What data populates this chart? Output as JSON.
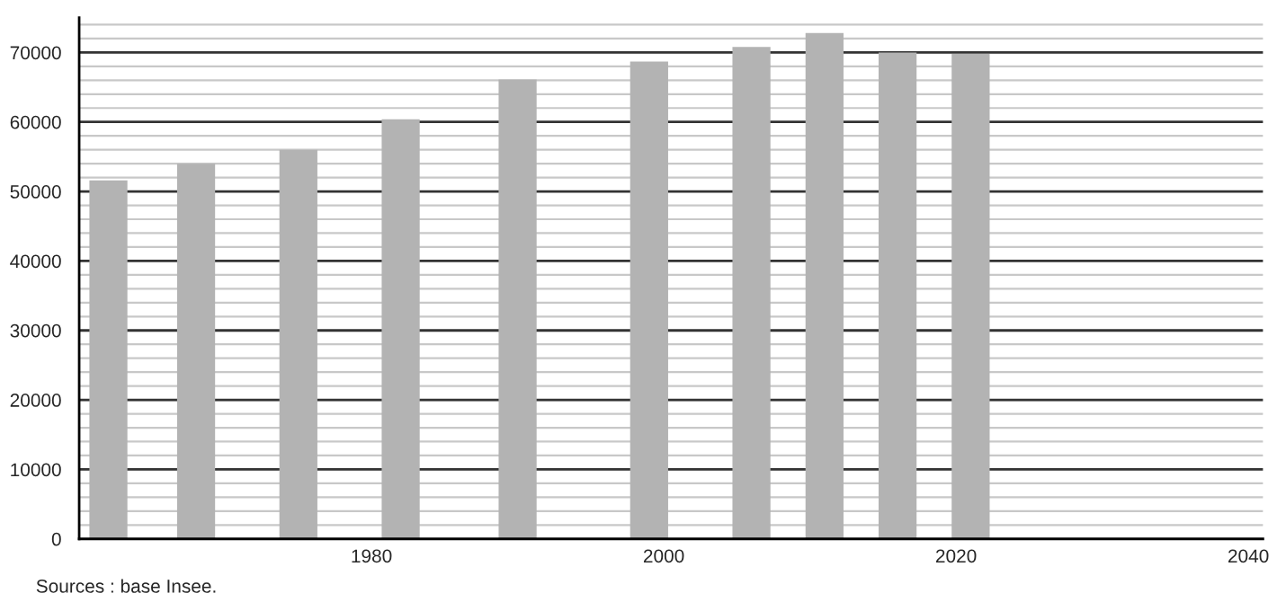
{
  "chart_data": {
    "type": "bar",
    "x": [
      1962,
      1968,
      1975,
      1982,
      1990,
      1999,
      2006,
      2011,
      2016,
      2021
    ],
    "series": [
      {
        "color": "#b3b3b3",
        "values": [
          51600,
          54000,
          56000,
          60400,
          66100,
          68700,
          70800,
          72800,
          70000,
          69800
        ]
      }
    ],
    "xlim": [
      1960,
      2041
    ],
    "xticks": [
      1980,
      2000,
      2020,
      2040
    ],
    "ylim": [
      0,
      75000
    ],
    "yticks": [
      0,
      {
        "value": 2000,
        "label": null
      },
      {
        "value": 4000,
        "label": null
      },
      {
        "value": 6000,
        "label": null
      },
      {
        "value": 8000,
        "label": null
      },
      10000,
      {
        "value": 12000,
        "label": null
      },
      {
        "value": 14000,
        "label": null
      },
      {
        "value": 16000,
        "label": null
      },
      {
        "value": 18000,
        "label": null
      },
      20000,
      {
        "value": 22000,
        "label": null
      },
      {
        "value": 24000,
        "label": null
      },
      {
        "value": 26000,
        "label": null
      },
      {
        "value": 28000,
        "label": null
      },
      30000,
      {
        "value": 32000,
        "label": null
      },
      {
        "value": 34000,
        "label": null
      },
      {
        "value": 36000,
        "label": null
      },
      {
        "value": 38000,
        "label": null
      },
      40000,
      {
        "value": 42000,
        "label": null
      },
      {
        "value": 44000,
        "label": null
      },
      {
        "value": 46000,
        "label": null
      },
      {
        "value": 48000,
        "label": null
      },
      50000,
      {
        "value": 52000,
        "label": null
      },
      {
        "value": 54000,
        "label": null
      },
      {
        "value": 56000,
        "label": null
      },
      {
        "value": 58000,
        "label": null
      },
      60000,
      {
        "value": 62000,
        "label": null
      },
      {
        "value": 64000,
        "label": null
      },
      {
        "value": 66000,
        "label": null
      },
      {
        "value": 68000,
        "label": null
      },
      70000,
      {
        "value": 72000,
        "label": null
      },
      {
        "value": 74000,
        "label": null
      }
    ],
    "grid": "y",
    "annotations": [
      "Sources : base Insee."
    ]
  }
}
